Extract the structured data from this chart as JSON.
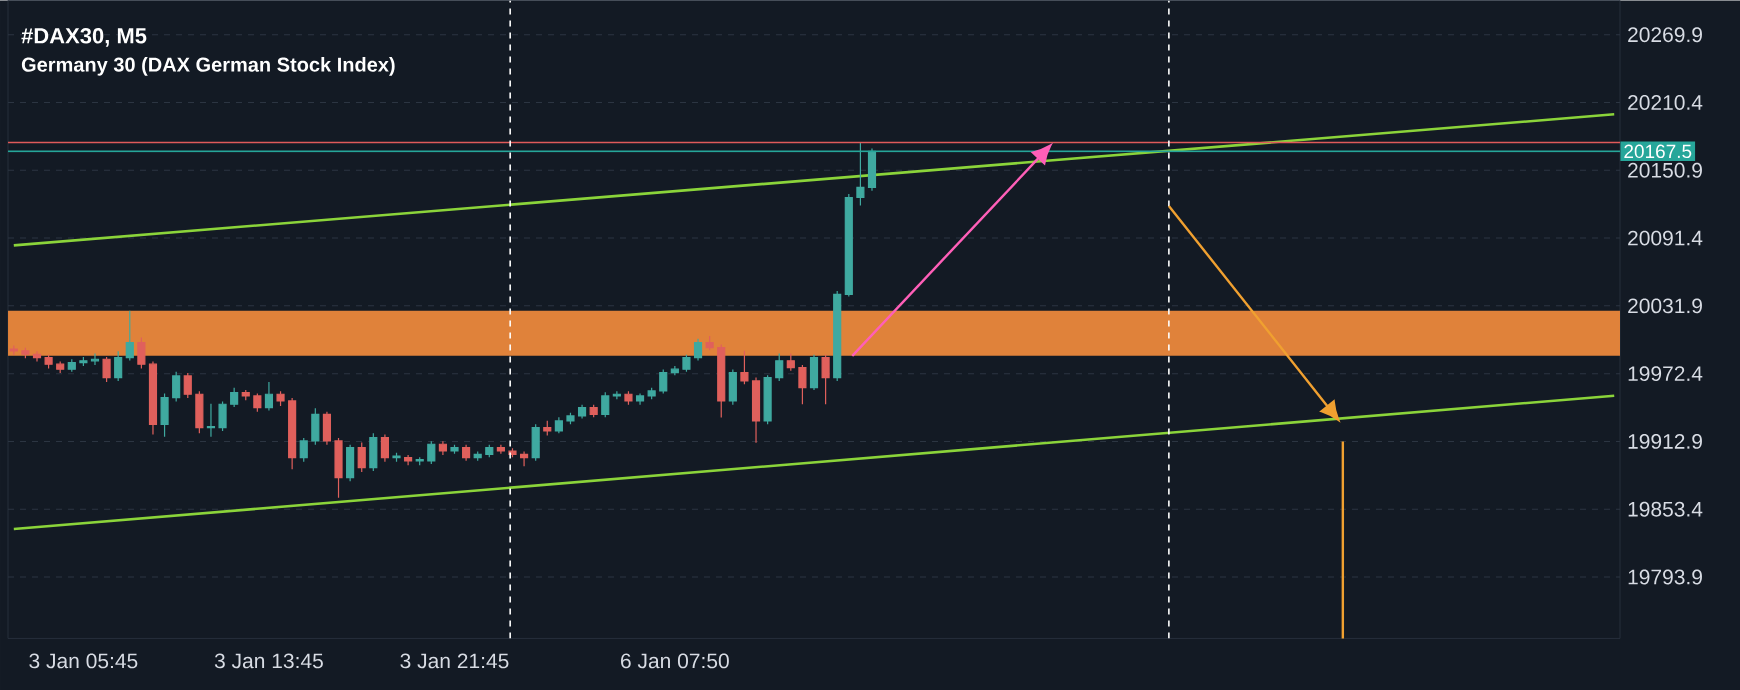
{
  "chart_data": {
    "type": "candlestick",
    "title": "#DAX30, M5",
    "subtitle": "Germany 30 (DAX German Stock Index)",
    "categories": [
      null,
      null,
      null,
      null,
      null,
      null,
      "3 Jan 05:45",
      null,
      null,
      null,
      null,
      null,
      null,
      null,
      null,
      null,
      null,
      null,
      null,
      null,
      null,
      null,
      "3 Jan 13:45",
      null,
      null,
      null,
      null,
      null,
      null,
      null,
      null,
      null,
      null,
      null,
      null,
      null,
      null,
      null,
      "3 Jan 21:45",
      null,
      null,
      null,
      null,
      null,
      null,
      null,
      null,
      null,
      null,
      null,
      null,
      null,
      null,
      null,
      null,
      null,
      null,
      "6 Jan 07:50",
      null,
      null,
      null,
      null,
      null,
      null,
      null,
      null,
      null,
      null,
      null,
      null,
      null,
      null,
      null,
      null,
      null,
      null,
      null,
      null,
      null,
      null,
      null,
      null,
      null,
      null,
      null,
      null,
      null,
      null,
      null,
      null,
      null,
      null,
      null,
      null,
      null,
      null,
      null,
      null,
      null,
      null,
      null,
      null,
      null,
      null,
      null,
      null,
      null,
      null,
      null,
      null,
      null,
      null,
      null,
      null,
      null,
      null,
      null,
      null,
      null,
      null,
      null,
      null,
      null,
      null,
      null,
      null,
      null,
      null,
      null,
      null,
      null,
      null,
      null,
      null,
      null,
      null,
      null,
      null,
      null
    ],
    "ohlc": [
      [
        19994.0,
        19997.0,
        19989.0,
        19992.4
      ],
      [
        19992.4,
        19995.0,
        19986.0,
        19989.4
      ],
      [
        19989.4,
        19992.0,
        19983.0,
        19986.5
      ],
      [
        19986.5,
        19989.0,
        19977.0,
        19980.7
      ],
      [
        19980.7,
        19983.0,
        19973.0,
        19976.3
      ],
      [
        19976.3,
        19985.0,
        19974.0,
        19982.1
      ],
      [
        19982.1,
        19987.0,
        19979.0,
        19983.6
      ],
      [
        19983.6,
        19990.0,
        19980.0,
        19985.0
      ],
      [
        19985.0,
        19987.0,
        19965.0,
        19968.9
      ],
      [
        19968.9,
        19992.0,
        19966.0,
        19986.5
      ],
      [
        19986.5,
        20027.5,
        19984.0,
        19999.7
      ],
      [
        19999.7,
        20004.0,
        19977.0,
        19980.7
      ],
      [
        19980.7,
        19983.0,
        19919.0,
        19927.9
      ],
      [
        19927.9,
        19955.0,
        19917.0,
        19951.4
      ],
      [
        19951.4,
        19974.0,
        19948.0,
        19970.4
      ],
      [
        19970.4,
        19973.0,
        19951.0,
        19954.3
      ],
      [
        19954.3,
        19957.0,
        19920.0,
        19925.0
      ],
      [
        19925.0,
        19946.0,
        19917.0,
        19926.0
      ],
      [
        19925.0,
        19948.0,
        19922.0,
        19945.5
      ],
      [
        19945.5,
        19960.0,
        19943.0,
        19955.8
      ],
      [
        19955.8,
        19958.0,
        19949.0,
        19952.8
      ],
      [
        19952.8,
        19955.0,
        19939.0,
        19942.6
      ],
      [
        19942.6,
        19965.0,
        19940.0,
        19954.3
      ],
      [
        19954.3,
        19957.0,
        19944.0,
        19948.4
      ],
      [
        19948.4,
        19951.0,
        19888.4,
        19898.6
      ],
      [
        19898.6,
        19916.0,
        19895.0,
        19913.3
      ],
      [
        19913.3,
        19942.0,
        19910.0,
        19936.7
      ],
      [
        19936.7,
        19939.0,
        19910.0,
        19913.3
      ],
      [
        19913.3,
        19916.0,
        19863.5,
        19881.1
      ],
      [
        19881.1,
        19910.0,
        19878.0,
        19907.4
      ],
      [
        19907.4,
        19912.0,
        19886.0,
        19889.9
      ],
      [
        19889.9,
        19920.0,
        19887.0,
        19916.2
      ],
      [
        19916.2,
        19919.0,
        19895.0,
        19898.6
      ],
      [
        19898.6,
        19903.0,
        19895.0,
        19900.0
      ],
      [
        19898.6,
        19901.0,
        19892.0,
        19895.7
      ],
      [
        19895.7,
        19899.0,
        19892.0,
        19897.0
      ],
      [
        19895.7,
        19913.0,
        19893.0,
        19910.4
      ],
      [
        19910.4,
        19913.0,
        19901.0,
        19904.5
      ],
      [
        19904.5,
        19910.0,
        19902.0,
        19907.4
      ],
      [
        19907.4,
        19910.0,
        19896.0,
        19898.6
      ],
      [
        19898.6,
        19904.0,
        19896.0,
        19901.6
      ],
      [
        19901.6,
        19910.0,
        19899.0,
        19907.4
      ],
      [
        19907.4,
        19910.0,
        19902.0,
        19904.5
      ],
      [
        19904.5,
        19907.0,
        19899.0,
        19901.6
      ],
      [
        19901.6,
        19904.0,
        19891.0,
        19898.6
      ],
      [
        19898.6,
        19928.0,
        19896.0,
        19925.0
      ],
      [
        19925.0,
        19931.0,
        19918.0,
        19922.1
      ],
      [
        19922.1,
        19934.0,
        19920.0,
        19930.9
      ],
      [
        19930.9,
        19938.0,
        19928.0,
        19935.3
      ],
      [
        19935.3,
        19945.0,
        19933.0,
        19942.6
      ],
      [
        19942.6,
        19945.0,
        19934.0,
        19936.7
      ],
      [
        19936.7,
        19956.0,
        19934.0,
        19952.8
      ],
      [
        19952.8,
        19957.0,
        19950.0,
        19954.3
      ],
      [
        19954.3,
        19957.0,
        19945.0,
        19948.4
      ],
      [
        19948.4,
        19955.0,
        19945.0,
        19952.8
      ],
      [
        19952.8,
        19960.0,
        19950.0,
        19957.2
      ],
      [
        19957.2,
        19976.0,
        19955.0,
        19973.3
      ],
      [
        19973.3,
        19979.0,
        19971.0,
        19976.3
      ],
      [
        19976.3,
        19989.0,
        19974.0,
        19986.5
      ],
      [
        19986.5,
        20003.0,
        19984.0,
        19999.7
      ],
      [
        19999.7,
        20005.5,
        19993.0,
        19995.3
      ],
      [
        19995.3,
        19998.0,
        19933.8,
        19948.4
      ],
      [
        19948.4,
        19976.0,
        19945.0,
        19973.3
      ],
      [
        19973.3,
        19992.4,
        19963.0,
        19966.0
      ],
      [
        19966.0,
        19969.0,
        19911.8,
        19930.9
      ],
      [
        19930.9,
        19971.0,
        19928.0,
        19968.9
      ],
      [
        19968.9,
        19990.0,
        19966.0,
        19983.6
      ],
      [
        19983.6,
        19990.0,
        19975.0,
        19977.7
      ],
      [
        19977.7,
        19980.0,
        19945.5,
        19960.1
      ],
      [
        19960.1,
        19989.0,
        19958.0,
        19986.5
      ],
      [
        19986.5,
        19989.0,
        19945.5,
        19968.9
      ],
      [
        19968.9,
        20045.0,
        19966.0,
        20042.0
      ],
      [
        20042.0,
        20130.0,
        20040.0,
        20127.0
      ],
      [
        20127.0,
        20175.3,
        20120.0,
        20135.8
      ],
      [
        20135.8,
        20170.0,
        20133.0,
        20167.5
      ],
      null,
      null,
      null,
      null,
      null,
      null,
      null,
      null,
      null,
      null,
      null,
      null,
      null,
      null,
      null,
      null,
      null,
      null,
      null,
      null,
      null,
      null,
      null,
      null,
      null,
      null,
      null,
      null,
      null,
      null,
      null,
      null,
      null,
      null,
      null,
      null,
      null,
      null,
      null,
      null,
      null,
      null,
      null,
      null,
      null,
      null,
      null,
      null,
      null,
      null,
      null,
      null,
      null,
      null,
      null,
      null,
      null,
      null,
      null,
      null,
      null,
      null,
      null,
      null
    ],
    "colors": [
      "#e0605c",
      "#e0605c",
      "#e0605c",
      "#e0605c",
      "#e0605c",
      "#3fa9a0",
      "#3fa9a0",
      "#3fa9a0",
      "#e0605c",
      "#3fa9a0",
      "#3fa9a0",
      "#e0605c",
      "#e0605c",
      "#3fa9a0",
      "#3fa9a0",
      "#e0605c",
      "#e0605c",
      "#3fa9a0",
      "#3fa9a0",
      "#3fa9a0",
      "#e0605c",
      "#e0605c",
      "#3fa9a0",
      "#e0605c",
      "#e0605c",
      "#3fa9a0",
      "#3fa9a0",
      "#e0605c",
      "#e0605c",
      "#3fa9a0",
      "#e0605c",
      "#3fa9a0",
      "#e0605c",
      "#3fa9a0",
      "#e0605c",
      "#3fa9a0",
      "#3fa9a0",
      "#e0605c",
      "#3fa9a0",
      "#e0605c",
      "#3fa9a0",
      "#3fa9a0",
      "#e0605c",
      "#e0605c",
      "#e0605c",
      "#3fa9a0",
      "#e0605c",
      "#3fa9a0",
      "#3fa9a0",
      "#3fa9a0",
      "#e0605c",
      "#3fa9a0",
      "#3fa9a0",
      "#e0605c",
      "#3fa9a0",
      "#3fa9a0",
      "#3fa9a0",
      "#3fa9a0",
      "#3fa9a0",
      "#3fa9a0",
      "#e0605c",
      "#e0605c",
      "#3fa9a0",
      "#e0605c",
      "#e0605c",
      "#3fa9a0",
      "#3fa9a0",
      "#e0605c",
      "#e0605c",
      "#3fa9a0",
      "#e0605c",
      "#3fa9a0",
      "#3fa9a0",
      "#3fa9a0",
      "#3fa9a0",
      null,
      null,
      null,
      null,
      null,
      null,
      null,
      null,
      null,
      null,
      null,
      null,
      null,
      null,
      null,
      null,
      null,
      null,
      null,
      null,
      null,
      null,
      null,
      null,
      null,
      null,
      null,
      null,
      null,
      null,
      null,
      null,
      null,
      null,
      null,
      null,
      null,
      null,
      null,
      null,
      null,
      null,
      null,
      null,
      null,
      null,
      null,
      null,
      null,
      null,
      null,
      null,
      null,
      null,
      null,
      null,
      null,
      null,
      null,
      null,
      null,
      null,
      null,
      null
    ],
    "series": [
      {
        "type": "line",
        "values": [
          20085,
          null,
          null,
          null,
          null,
          null,
          null,
          null,
          null,
          null,
          null,
          null,
          null,
          null,
          null,
          null,
          null,
          null,
          null,
          null,
          null,
          null,
          null,
          null,
          null,
          null,
          null,
          null,
          null,
          null,
          null,
          null,
          null,
          null,
          null,
          null,
          null,
          null,
          null,
          null,
          null,
          null,
          null,
          null,
          null,
          null,
          null,
          null,
          null,
          null,
          null,
          null,
          null,
          null,
          null,
          null,
          null,
          null,
          null,
          null,
          null,
          null,
          null,
          null,
          null,
          null,
          null,
          null,
          null,
          null,
          null,
          null,
          null,
          null,
          null,
          null,
          null,
          null,
          null,
          null,
          null,
          null,
          null,
          null,
          null,
          null,
          null,
          null,
          null,
          null,
          null,
          null,
          null,
          null,
          null,
          null,
          null,
          null,
          null,
          null,
          null,
          null,
          null,
          null,
          null,
          null,
          null,
          null,
          null,
          null,
          null,
          null,
          null,
          null,
          null,
          null,
          null,
          null,
          null,
          null,
          null,
          null,
          null,
          null,
          null,
          null,
          null,
          null,
          null,
          null,
          null,
          null,
          null,
          null,
          null,
          null,
          null,
          null,
          20200
        ],
        "color": "#8bd43a"
      },
      {
        "type": "line",
        "values": [
          19836,
          null,
          null,
          null,
          null,
          null,
          null,
          null,
          null,
          null,
          null,
          null,
          null,
          null,
          null,
          null,
          null,
          null,
          null,
          null,
          null,
          null,
          null,
          null,
          null,
          null,
          null,
          null,
          null,
          null,
          null,
          null,
          null,
          null,
          null,
          null,
          null,
          null,
          null,
          null,
          null,
          null,
          null,
          null,
          null,
          null,
          null,
          null,
          null,
          null,
          null,
          null,
          null,
          null,
          null,
          null,
          null,
          null,
          null,
          null,
          null,
          null,
          null,
          null,
          null,
          null,
          null,
          null,
          null,
          null,
          null,
          null,
          null,
          null,
          null,
          null,
          null,
          null,
          null,
          null,
          null,
          null,
          null,
          null,
          null,
          null,
          null,
          null,
          null,
          null,
          null,
          null,
          null,
          null,
          null,
          null,
          null,
          null,
          null,
          null,
          null,
          null,
          null,
          null,
          null,
          null,
          null,
          null,
          null,
          null,
          null,
          null,
          null,
          null,
          null,
          null,
          null,
          null,
          null,
          null,
          null,
          null,
          null,
          null,
          null,
          null,
          null,
          null,
          null,
          null,
          null,
          null,
          null,
          null,
          null,
          null,
          null,
          null,
          19953
        ],
        "color": "#8bd43a"
      }
    ],
    "ylim": [
      19740,
      20300
    ],
    "yticks": [
      19793.9,
      19853.4,
      19912.9,
      19972.4,
      20031.9,
      20091.4,
      20150.9,
      20210.4,
      20269.9
    ],
    "ref_lines": [
      {
        "axis": "y",
        "value": 20175.3,
        "color": "#e05a5a"
      },
      {
        "axis": "y",
        "value": 20167.5,
        "label": "20167.5",
        "color": "#26a69a"
      }
    ],
    "bands": [
      {
        "axis": "y",
        "from": 19988.0,
        "to": 20027.5,
        "color": "#e0823a"
      }
    ],
    "grid": "y"
  }
}
